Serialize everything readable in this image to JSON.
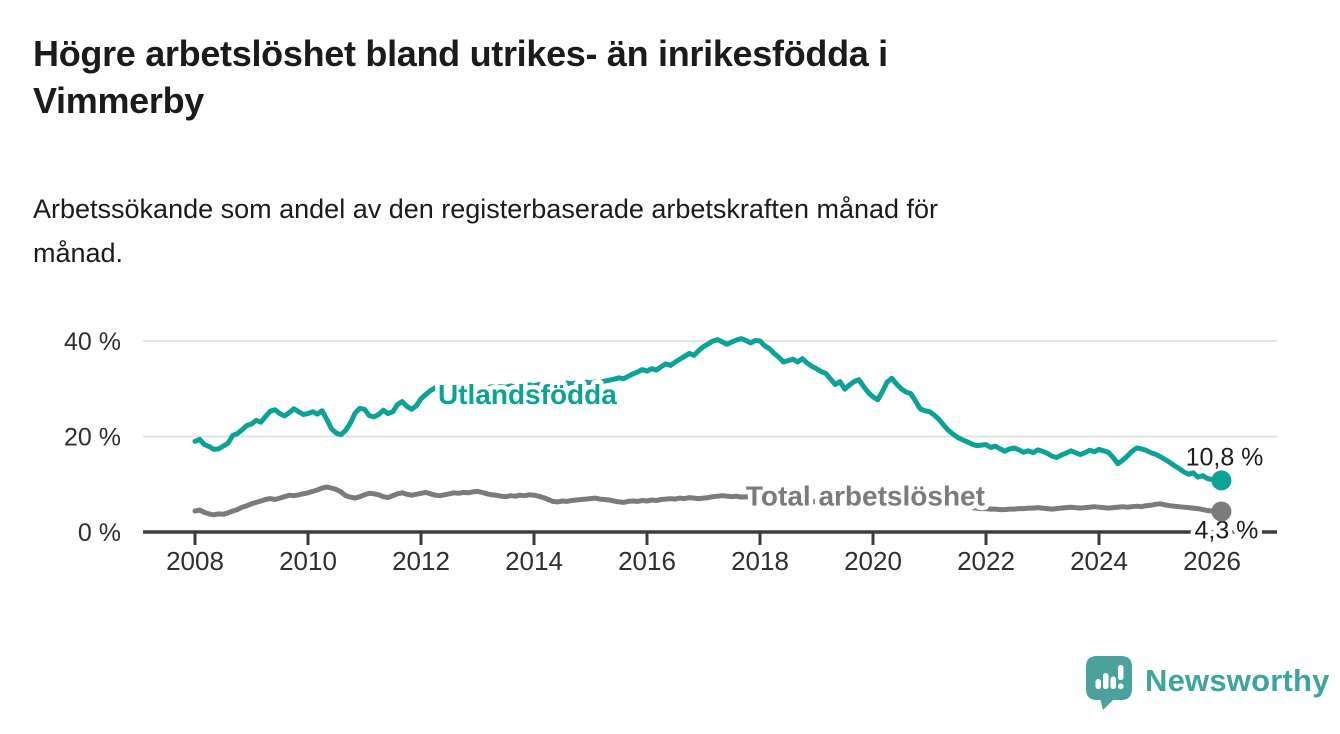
{
  "chart_data": {
    "type": "line",
    "title_lines": [
      "Högre arbetslöshet bland utrikes- än inrikesfödda i",
      "Vimmerby"
    ],
    "subtitle_lines": [
      "Arbetssökande som andel av den registerbaserade arbetskraften månad för",
      "månad."
    ],
    "x_axis": {
      "unit": "year",
      "interval": "monthly",
      "start_year": 2008,
      "ticks": [
        {
          "v": 2008,
          "label": "2008"
        },
        {
          "v": 2010,
          "label": "2010"
        },
        {
          "v": 2012,
          "label": "2012"
        },
        {
          "v": 2014,
          "label": "2014"
        },
        {
          "v": 2016,
          "label": "2016"
        },
        {
          "v": 2018,
          "label": "2018"
        },
        {
          "v": 2020,
          "label": "2020"
        },
        {
          "v": 2022,
          "label": "2022"
        },
        {
          "v": 2024,
          "label": "2024"
        },
        {
          "v": 2026,
          "label": "2026"
        }
      ]
    },
    "y_axis": {
      "unit": "%",
      "min": 0,
      "max": 43,
      "ticks": [
        {
          "v": 0,
          "label": "0 %"
        },
        {
          "v": 20,
          "label": "20 %"
        },
        {
          "v": 40,
          "label": "40 %"
        }
      ],
      "grid_values": [
        20,
        40
      ]
    },
    "colors": {
      "grid": "#dcdcdc",
      "axis": "#3d3d3d",
      "annotation": "#1d1d1d"
    },
    "series": [
      {
        "id": "utlandsfodda",
        "name": "Utlandsfödda",
        "color": "#0ca296",
        "end_label": "10,8 %",
        "end_value": 10.8,
        "label_at": {
          "year": 2012.3,
          "value": 26.8
        },
        "values": [
          19.0,
          19.4,
          18.3,
          17.9,
          17.3,
          17.4,
          18.0,
          18.6,
          20.2,
          20.6,
          21.4,
          22.3,
          22.6,
          23.4,
          23.0,
          24.2,
          25.3,
          25.6,
          24.8,
          24.3,
          25.0,
          25.8,
          25.2,
          24.6,
          24.8,
          25.2,
          24.7,
          25.4,
          23.6,
          21.6,
          20.7,
          20.4,
          21.3,
          22.8,
          24.9,
          25.9,
          25.7,
          24.4,
          24.1,
          24.6,
          25.5,
          24.8,
          25.2,
          26.7,
          27.3,
          26.3,
          25.7,
          26.4,
          27.9,
          28.8,
          29.6,
          30.2,
          29.4,
          28.9,
          29.8,
          30.3,
          29.7,
          30.0,
          30.4,
          30.1,
          30.0,
          30.3,
          30.1,
          30.4,
          30.2,
          30.5,
          30.3,
          30.6,
          30.4,
          30.7,
          30.5,
          30.8,
          30.6,
          30.9,
          30.7,
          31.0,
          30.8,
          31.1,
          30.9,
          31.2,
          31.0,
          31.3,
          31.1,
          31.4,
          31.2,
          31.5,
          31.3,
          31.6,
          31.8,
          32.0,
          32.3,
          32.1,
          32.6,
          33.1,
          33.5,
          34.0,
          33.7,
          34.2,
          33.9,
          34.6,
          35.2,
          34.9,
          35.6,
          36.2,
          36.8,
          37.4,
          37.0,
          38.0,
          38.8,
          39.4,
          40.0,
          40.3,
          39.8,
          39.3,
          39.8,
          40.2,
          40.5,
          40.1,
          39.6,
          40.1,
          40.0,
          39.0,
          38.4,
          37.4,
          36.6,
          35.6,
          35.9,
          36.2,
          35.6,
          36.3,
          35.4,
          34.7,
          34.2,
          33.6,
          33.2,
          32.0,
          30.9,
          31.5,
          29.9,
          30.8,
          31.5,
          31.9,
          30.5,
          29.2,
          28.3,
          27.7,
          29.4,
          31.4,
          32.2,
          31.0,
          30.0,
          29.3,
          29.0,
          27.5,
          25.8,
          25.4,
          25.2,
          24.5,
          23.6,
          22.4,
          21.3,
          20.5,
          19.8,
          19.3,
          18.9,
          18.4,
          18.1,
          18.2,
          18.3,
          17.7,
          18.0,
          17.4,
          16.9,
          17.4,
          17.6,
          17.2,
          16.7,
          17.0,
          16.6,
          17.2,
          16.9,
          16.5,
          15.9,
          15.6,
          16.1,
          16.5,
          17.0,
          16.6,
          16.2,
          16.6,
          17.1,
          16.8,
          17.3,
          17.0,
          16.7,
          15.6,
          14.3,
          15.0,
          15.9,
          16.9,
          17.6,
          17.4,
          17.1,
          16.6,
          16.3,
          15.8,
          15.2,
          14.6,
          13.9,
          13.3,
          12.6,
          12.1,
          12.4,
          11.5,
          11.8,
          11.2,
          11.0,
          11.3,
          10.8
        ]
      },
      {
        "id": "total-arbetsloshet",
        "name": "Total arbetslöshet",
        "color": "#7b7b7b",
        "end_label": "4,3 %",
        "end_value": 4.3,
        "label_at": {
          "year": 2017.75,
          "value": 5.6
        },
        "values": [
          4.4,
          4.6,
          4.1,
          3.8,
          3.6,
          3.8,
          3.7,
          4.0,
          4.4,
          4.7,
          5.2,
          5.5,
          5.9,
          6.2,
          6.5,
          6.8,
          7.0,
          6.8,
          7.1,
          7.4,
          7.7,
          7.6,
          7.8,
          8.0,
          8.2,
          8.5,
          8.8,
          9.2,
          9.4,
          9.2,
          8.9,
          8.4,
          7.6,
          7.3,
          7.1,
          7.4,
          7.8,
          8.1,
          8.0,
          7.8,
          7.4,
          7.2,
          7.6,
          8.0,
          8.2,
          7.9,
          7.7,
          7.9,
          8.1,
          8.3,
          8.0,
          7.7,
          7.6,
          7.8,
          8.0,
          8.2,
          8.1,
          8.3,
          8.2,
          8.4,
          8.5,
          8.3,
          8.0,
          7.8,
          7.7,
          7.5,
          7.4,
          7.6,
          7.5,
          7.7,
          7.6,
          7.8,
          7.7,
          7.5,
          7.2,
          6.8,
          6.4,
          6.3,
          6.5,
          6.4,
          6.6,
          6.7,
          6.8,
          6.9,
          7.0,
          7.1,
          6.9,
          6.8,
          6.7,
          6.5,
          6.3,
          6.2,
          6.4,
          6.5,
          6.4,
          6.6,
          6.5,
          6.7,
          6.6,
          6.8,
          6.9,
          7.0,
          6.9,
          7.1,
          7.0,
          7.2,
          7.1,
          7.0,
          7.1,
          7.2,
          7.4,
          7.5,
          7.6,
          7.5,
          7.4,
          7.5,
          7.3,
          7.4,
          7.2,
          7.3,
          7.2,
          7.1,
          7.0,
          6.9,
          6.8,
          6.7,
          6.6,
          6.6,
          6.5,
          6.5,
          6.4,
          6.4,
          6.3,
          6.3,
          6.2,
          6.2,
          6.1,
          6.1,
          6.0,
          6.0,
          6.1,
          6.1,
          6.2,
          6.2,
          6.3,
          6.4,
          6.8,
          7.2,
          7.4,
          7.5,
          7.4,
          7.3,
          7.1,
          7.0,
          6.8,
          6.7,
          6.6,
          6.4,
          6.2,
          6.0,
          5.8,
          5.6,
          5.4,
          5.3,
          5.2,
          5.1,
          5.0,
          4.9,
          4.9,
          4.8,
          4.8,
          4.7,
          4.7,
          4.8,
          4.8,
          4.9,
          4.9,
          5.0,
          5.0,
          5.1,
          5.0,
          4.9,
          4.8,
          4.9,
          5.0,
          5.1,
          5.2,
          5.1,
          5.0,
          5.1,
          5.2,
          5.3,
          5.2,
          5.1,
          5.0,
          5.1,
          5.2,
          5.3,
          5.2,
          5.3,
          5.4,
          5.3,
          5.5,
          5.6,
          5.8,
          5.9,
          5.7,
          5.5,
          5.4,
          5.3,
          5.2,
          5.1,
          5.0,
          4.9,
          4.7,
          4.5,
          4.4,
          4.4,
          4.3
        ]
      }
    ]
  },
  "footer": {
    "brand": "Newsworthy",
    "logo_icon": "bar-chart-speech-bubble-icon"
  }
}
